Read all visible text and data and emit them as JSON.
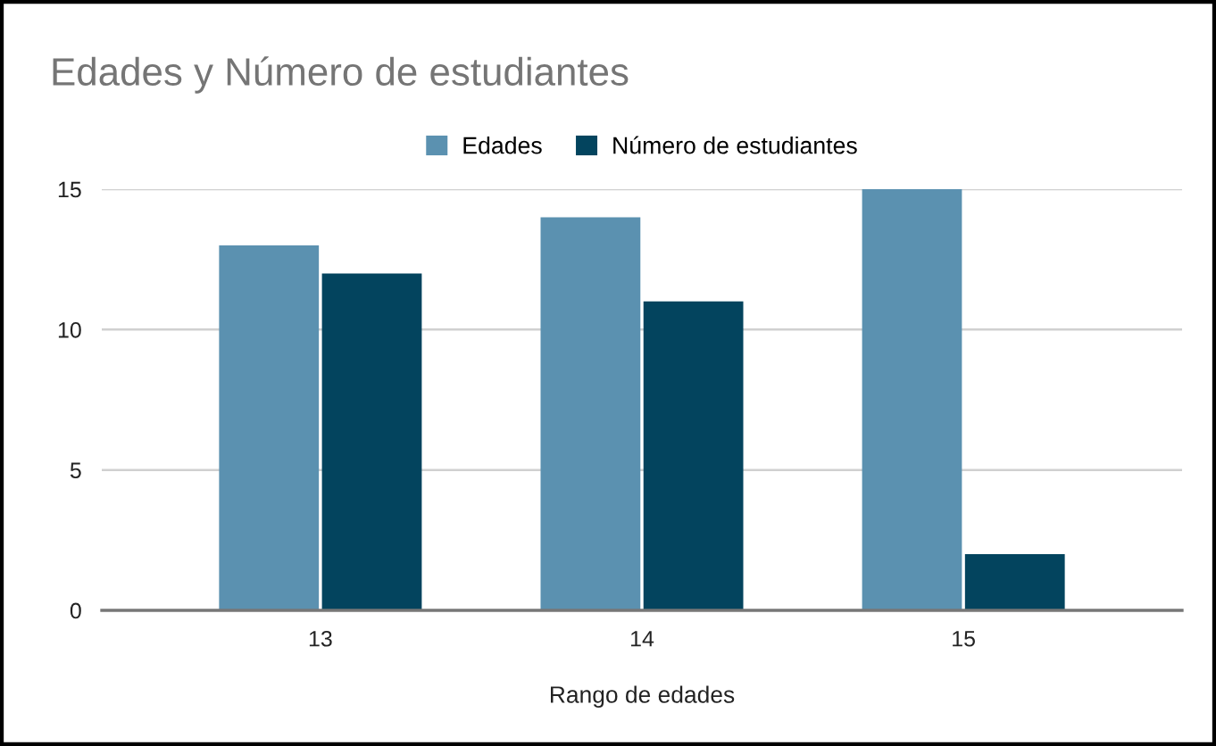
{
  "chart_data": {
    "type": "bar",
    "title": "Edades y Número de estudiantes",
    "xlabel": "Rango de edades",
    "categories": [
      "13",
      "14",
      "15"
    ],
    "series": [
      {
        "name": "Edades",
        "color": "#5b91b0",
        "values": [
          13,
          14,
          15
        ]
      },
      {
        "name": "Número de estudiantes",
        "color": "#03445e",
        "values": [
          12,
          11,
          2
        ]
      }
    ],
    "ylim": [
      0,
      15
    ],
    "yticks": [
      0,
      5,
      10,
      15
    ],
    "grid": "y",
    "legend": "top"
  }
}
